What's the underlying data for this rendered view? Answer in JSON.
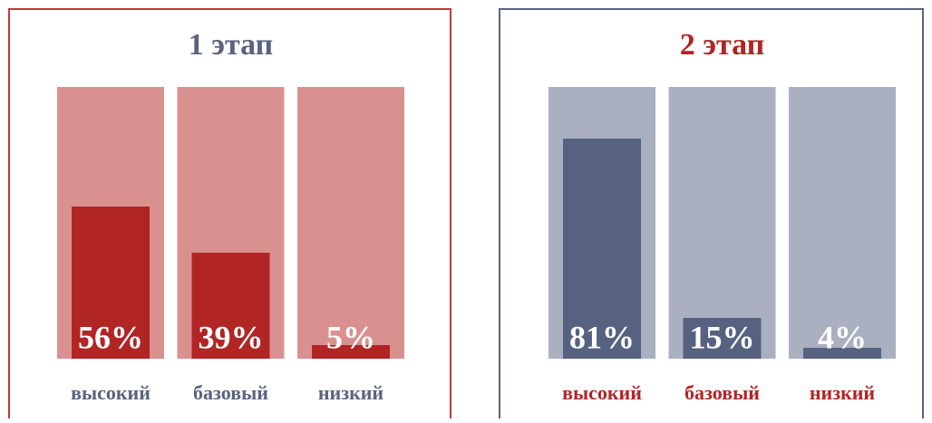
{
  "chart_data": [
    {
      "type": "bar",
      "title": "1 этап",
      "categories": [
        "высокий",
        "базовый",
        "низкий"
      ],
      "values": [
        56,
        39,
        5
      ],
      "value_labels": [
        "56%",
        "39%",
        "5%"
      ],
      "color": "#b12525",
      "background_color": "#d99190",
      "border_color": "#c0393b",
      "title_color": "#5a6380",
      "label_color": "#5a6380",
      "ylim": [
        0,
        100
      ]
    },
    {
      "type": "bar",
      "title": "2 этап",
      "categories": [
        "высокий",
        "базовый",
        "низкий"
      ],
      "values": [
        81,
        15,
        4
      ],
      "value_labels": [
        "81%",
        "15%",
        "4%"
      ],
      "color": "#566280",
      "background_color": "#aab0c0",
      "border_color": "#5a6380",
      "title_color": "#b12525",
      "label_color": "#b12525",
      "ylim": [
        0,
        100
      ]
    }
  ]
}
